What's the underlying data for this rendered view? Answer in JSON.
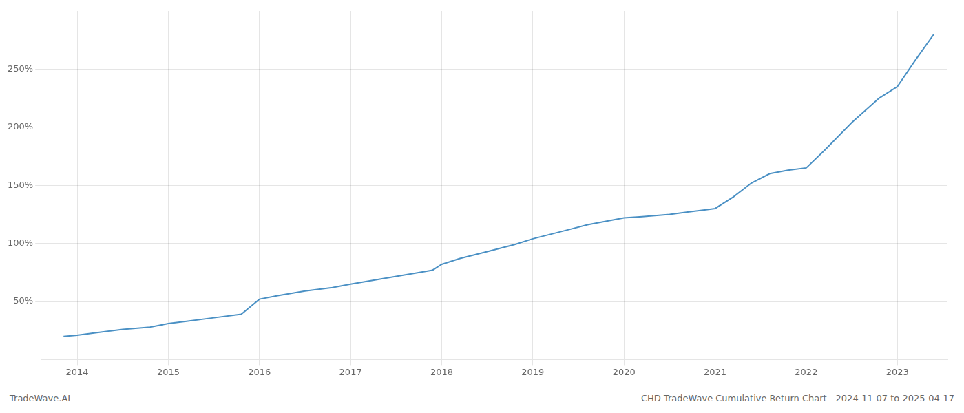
{
  "chart_data": {
    "type": "line",
    "x": [
      2013.85,
      2014.0,
      2014.2,
      2014.5,
      2014.8,
      2015.0,
      2015.2,
      2015.5,
      2015.8,
      2016.0,
      2016.2,
      2016.5,
      2016.8,
      2017.0,
      2017.3,
      2017.6,
      2017.9,
      2018.0,
      2018.2,
      2018.5,
      2018.8,
      2019.0,
      2019.2,
      2019.4,
      2019.6,
      2019.8,
      2020.0,
      2020.2,
      2020.5,
      2020.7,
      2020.9,
      2021.0,
      2021.2,
      2021.4,
      2021.6,
      2021.8,
      2022.0,
      2022.2,
      2022.5,
      2022.8,
      2023.0,
      2023.2,
      2023.4
    ],
    "values": [
      20,
      21,
      23,
      26,
      28,
      31,
      33,
      36,
      39,
      52,
      55,
      59,
      62,
      65,
      69,
      73,
      77,
      82,
      87,
      93,
      99,
      104,
      108,
      112,
      116,
      119,
      122,
      123,
      125,
      127,
      129,
      130,
      140,
      152,
      160,
      163,
      165,
      180,
      204,
      225,
      235,
      258,
      280
    ],
    "color": "#4a90c4",
    "xlim": [
      2013.6,
      2023.55
    ],
    "xticks": [
      2014,
      2015,
      2016,
      2017,
      2018,
      2019,
      2020,
      2021,
      2022,
      2023
    ],
    "ylim": [
      0,
      300
    ],
    "yticks": [
      {
        "value": 50,
        "label": "50%"
      },
      {
        "value": 100,
        "label": "100%"
      },
      {
        "value": 150,
        "label": "150%"
      },
      {
        "value": 200,
        "label": "200%"
      },
      {
        "value": 250,
        "label": "250%"
      }
    ],
    "grid": true,
    "annotations": [
      "TradeWave.AI",
      "CHD TradeWave Cumulative Return Chart - 2024-11-07 to 2025-04-17"
    ]
  }
}
